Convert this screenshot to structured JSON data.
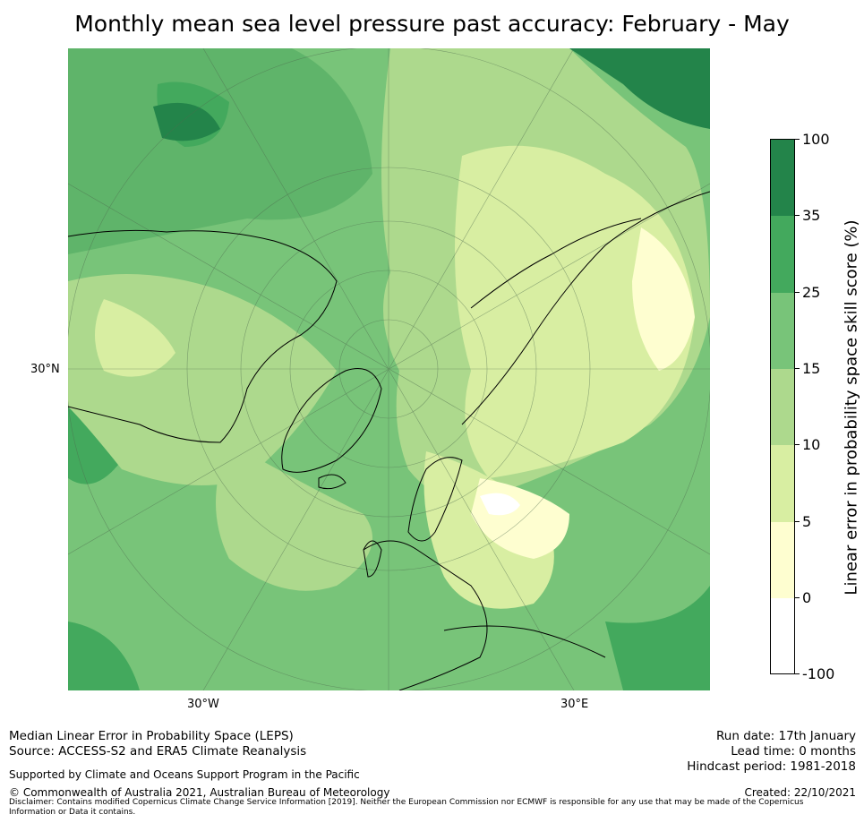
{
  "title": "Monthly mean sea level pressure past accuracy: February - May",
  "map": {
    "lat_labels": [
      {
        "text": "30°N"
      }
    ],
    "lon_labels": [
      {
        "text": "30°W"
      },
      {
        "text": "30°E"
      }
    ]
  },
  "colorbar": {
    "title": "Linear error in probability space skill score (%)",
    "tick_labels": [
      "100",
      "35",
      "25",
      "15",
      "10",
      "5",
      "0",
      "-100"
    ],
    "colors": [
      "#23844a",
      "#43a95d",
      "#78c479",
      "#add98d",
      "#d8eea2",
      "#fefed0",
      "#ffffff"
    ]
  },
  "footer": {
    "left": {
      "line1": "Median Linear Error in Probability Space (LEPS)",
      "line2": "Source: ACCESS-S2 and ERA5 Climate Reanalysis",
      "support": "Supported by Climate and Oceans Support Program in the Pacific",
      "copyright": "© Commonwealth of Australia 2021, Australian Bureau of Meteorology",
      "disclaimer": "Disclaimer: Contains modified Copernicus Climate Change Service Information [2019]. Neither the European Commission nor ECMWF is responsible for any use that may be made of the Copernicus Information or Data it contains."
    },
    "right": {
      "run_date": "Run date: 17th January",
      "lead_time": "Lead time: 0 months",
      "hindcast": "Hindcast period: 1981-2018",
      "created": "Created: 22/10/2021"
    }
  }
}
